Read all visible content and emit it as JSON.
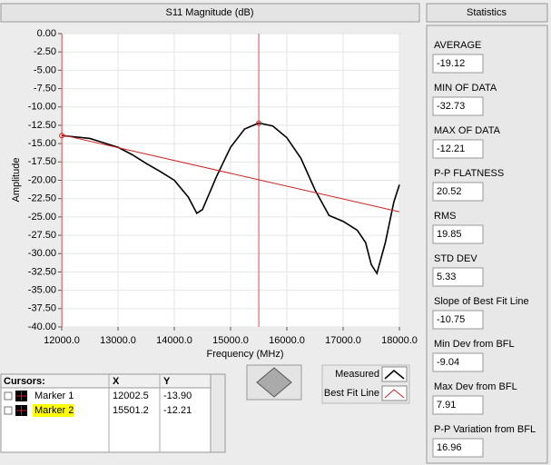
{
  "chart_data": {
    "type": "line",
    "title": "S11 Magnitude (dB)",
    "x_label": "Frequency (MHz)",
    "y_label": "Amplitude",
    "xlim": [
      12000,
      18000
    ],
    "xticks": [
      {
        "value": 12000,
        "label": "12000.0"
      },
      {
        "value": 13000,
        "label": "13000.0"
      },
      {
        "value": 14000,
        "label": "14000.0"
      },
      {
        "value": 15000,
        "label": "15000.0"
      },
      {
        "value": 16000,
        "label": "16000.0"
      },
      {
        "value": 17000,
        "label": "17000.0"
      },
      {
        "value": 18000,
        "label": "18000.0"
      }
    ],
    "ylim": [
      -40,
      0
    ],
    "yticks": [
      {
        "value": 0,
        "label": "0.00"
      },
      {
        "value": -2.5,
        "label": "-2.50"
      },
      {
        "value": -5,
        "label": "-5.00"
      },
      {
        "value": -7.5,
        "label": "-7.50"
      },
      {
        "value": -10,
        "label": "-10.00"
      },
      {
        "value": -12.5,
        "label": "-12.50"
      },
      {
        "value": -15,
        "label": "-15.00"
      },
      {
        "value": -17.5,
        "label": "-17.50"
      },
      {
        "value": -20,
        "label": "-20.00"
      },
      {
        "value": -22.5,
        "label": "-22.50"
      },
      {
        "value": -25,
        "label": "-25.00"
      },
      {
        "value": -27.5,
        "label": "-27.50"
      },
      {
        "value": -30,
        "label": "-30.00"
      },
      {
        "value": -32.5,
        "label": "-32.50"
      },
      {
        "value": -35,
        "label": "-35.00"
      },
      {
        "value": -37.5,
        "label": "-37.50"
      },
      {
        "value": -40,
        "label": "-40.00"
      }
    ],
    "grid": true,
    "series": [
      {
        "name": "Measured",
        "color": "#000000",
        "x": [
          12000,
          12500,
          13000,
          13250,
          13500,
          13750,
          14000,
          14250,
          14400,
          14500,
          14750,
          15000,
          15250,
          15500,
          15750,
          16000,
          16250,
          16500,
          16750,
          17000,
          17250,
          17400,
          17500,
          17600,
          17750,
          17900,
          18000
        ],
        "values": [
          -13.9,
          -14.3,
          -15.5,
          -16.5,
          -17.7,
          -18.8,
          -20.0,
          -22.3,
          -24.5,
          -24.0,
          -19.5,
          -15.5,
          -13.0,
          -12.2,
          -12.6,
          -14.2,
          -17.0,
          -21.3,
          -24.8,
          -25.6,
          -26.8,
          -28.5,
          -31.5,
          -32.7,
          -28.5,
          -23.0,
          -20.6
        ]
      },
      {
        "name": "Best Fit Line",
        "color": "#d02020",
        "x": [
          12000,
          18000
        ],
        "values": [
          -13.8,
          -24.3
        ]
      }
    ],
    "cursors": [
      {
        "name": "Marker 1",
        "x": 12002.5,
        "y": {
          "value": -13.9,
          "label": "-13.90"
        }
      },
      {
        "name": "Marker 2",
        "x": 15501.2,
        "y": {
          "value": -12.21,
          "label": "-12.21"
        }
      }
    ],
    "cursor_header": [
      "Cursors:",
      "X",
      "Y"
    ]
  },
  "statistics": {
    "title": "Statistics",
    "items": [
      {
        "label": "AVERAGE",
        "value": "-19.12"
      },
      {
        "label": "MIN OF DATA",
        "value": "-32.73"
      },
      {
        "label": "MAX OF DATA",
        "value": "-12.21"
      },
      {
        "label": "P-P FLATNESS",
        "value": "20.52"
      },
      {
        "label": "RMS",
        "value": "19.85"
      },
      {
        "label": "STD DEV",
        "value": "5.33"
      },
      {
        "label": "Slope of Best Fit Line",
        "value": "-10.75"
      },
      {
        "label": "Min Dev from BFL",
        "value": "-9.04"
      },
      {
        "label": "Max Dev from BFL",
        "value": "7.91"
      },
      {
        "label": "P-P Variation from BFL",
        "value": "16.96"
      }
    ]
  }
}
